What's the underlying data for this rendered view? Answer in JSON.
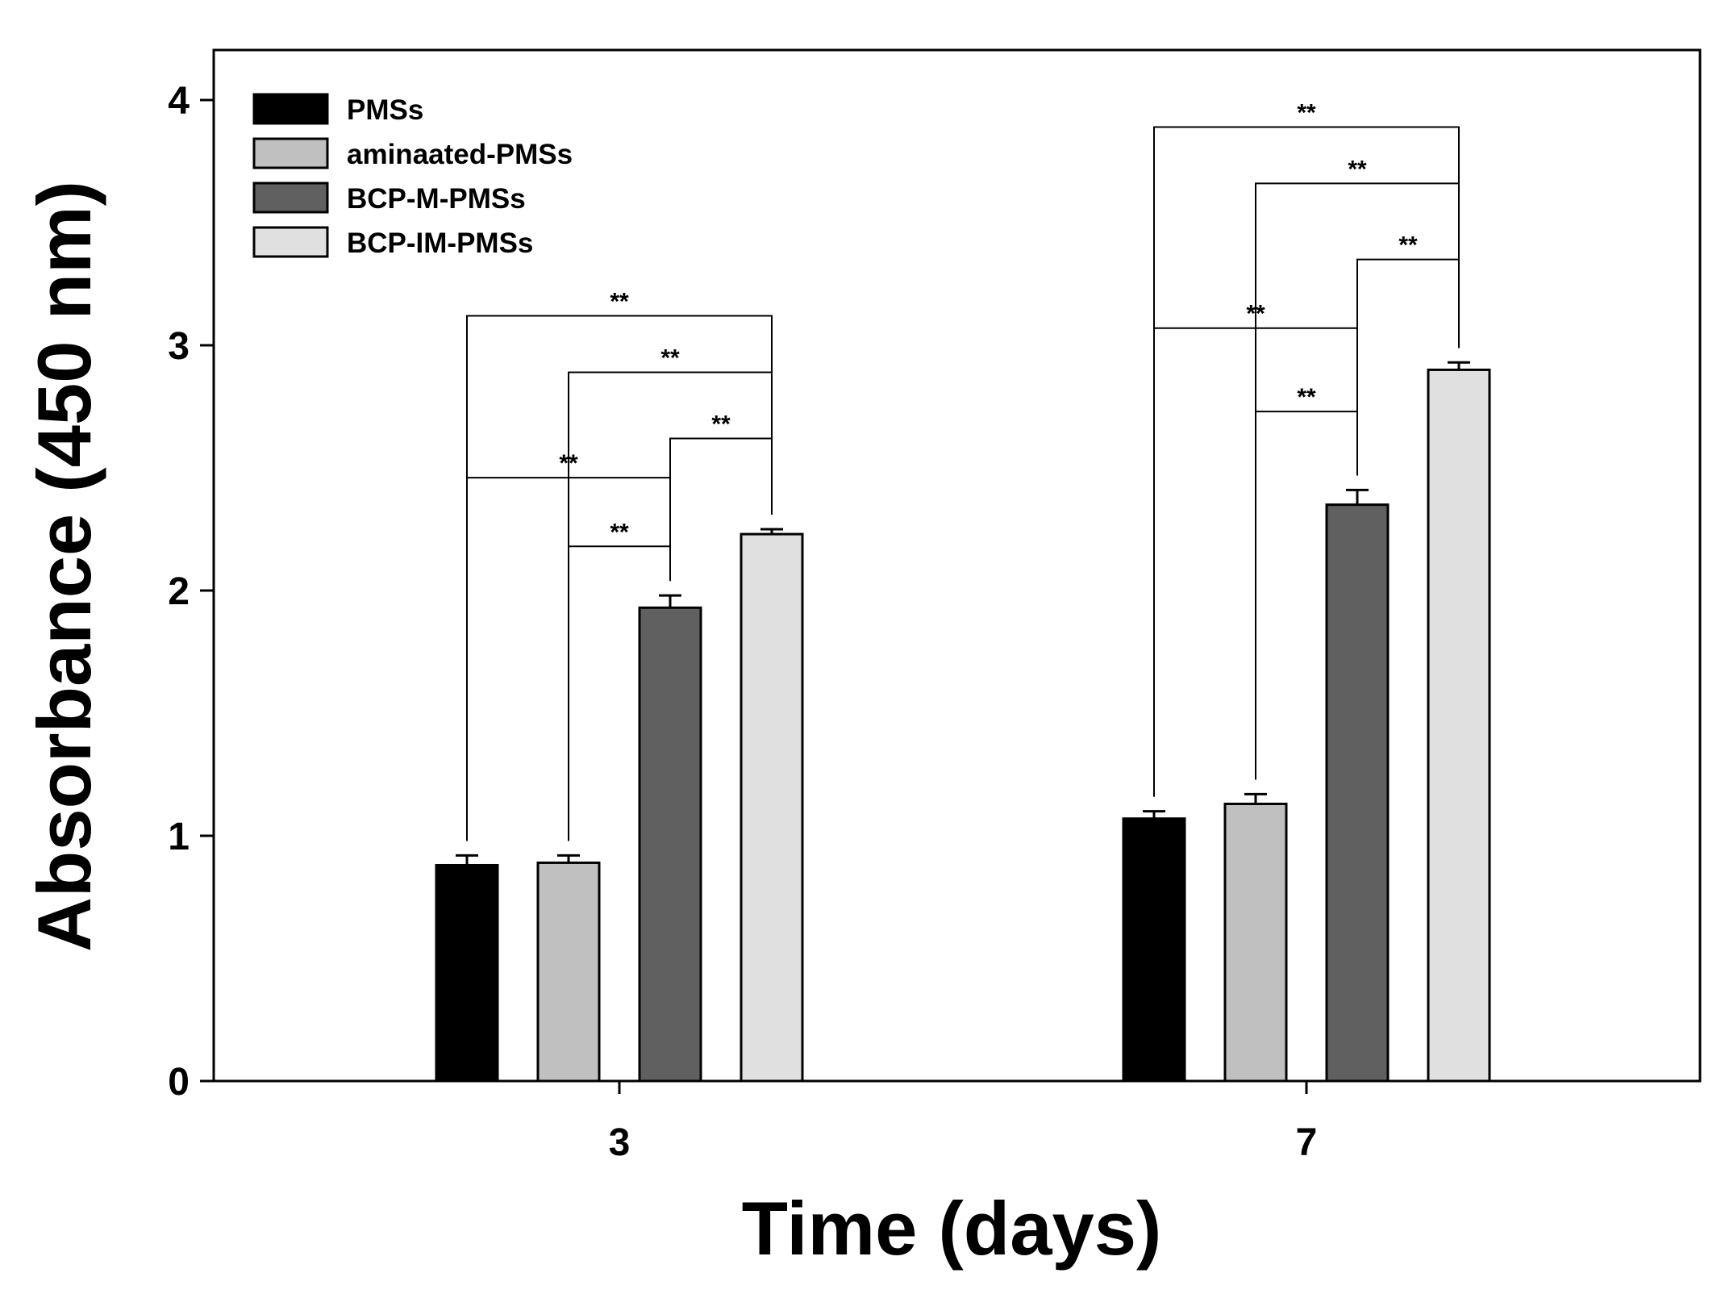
{
  "chart_data": {
    "type": "bar",
    "title": "",
    "xlabel": "Time (days)",
    "ylabel": "Absorbance (450 nm)",
    "categories": [
      "3",
      "7"
    ],
    "ylim": [
      0,
      4.2
    ],
    "yticks": [
      "0",
      "1",
      "2",
      "3",
      "4"
    ],
    "legend_position": "top-left",
    "grid": false,
    "series": [
      {
        "name": "PMSs",
        "color": "#000000",
        "values": [
          0.88,
          1.07
        ],
        "errors": [
          0.04,
          0.03
        ]
      },
      {
        "name": "aminaated-PMSs",
        "color": "#c0c0c0",
        "values": [
          0.89,
          1.13
        ],
        "errors": [
          0.03,
          0.04
        ]
      },
      {
        "name": "BCP-M-PMSs",
        "color": "#606060",
        "values": [
          1.93,
          2.35
        ],
        "errors": [
          0.05,
          0.06
        ]
      },
      {
        "name": "BCP-IM-PMSs",
        "color": "#e0e0e0",
        "values": [
          2.23,
          2.9
        ],
        "errors": [
          0.02,
          0.03
        ]
      }
    ],
    "significance": [
      {
        "category": 0,
        "from": 0,
        "to": 3,
        "level": 3.12,
        "label": "**"
      },
      {
        "category": 0,
        "from": 1,
        "to": 3,
        "level": 2.89,
        "label": "**"
      },
      {
        "category": 0,
        "from": 2,
        "to": 3,
        "level": 2.62,
        "label": "**"
      },
      {
        "category": 0,
        "from": 0,
        "to": 2,
        "level": 2.46,
        "label": "**"
      },
      {
        "category": 0,
        "from": 1,
        "to": 2,
        "level": 2.18,
        "label": "**"
      },
      {
        "category": 1,
        "from": 0,
        "to": 3,
        "level": 3.89,
        "label": "**"
      },
      {
        "category": 1,
        "from": 1,
        "to": 3,
        "level": 3.66,
        "label": "**"
      },
      {
        "category": 1,
        "from": 2,
        "to": 3,
        "level": 3.35,
        "label": "**"
      },
      {
        "category": 1,
        "from": 0,
        "to": 2,
        "level": 3.07,
        "label": "**"
      },
      {
        "category": 1,
        "from": 1,
        "to": 2,
        "level": 2.73,
        "label": "**"
      }
    ]
  }
}
